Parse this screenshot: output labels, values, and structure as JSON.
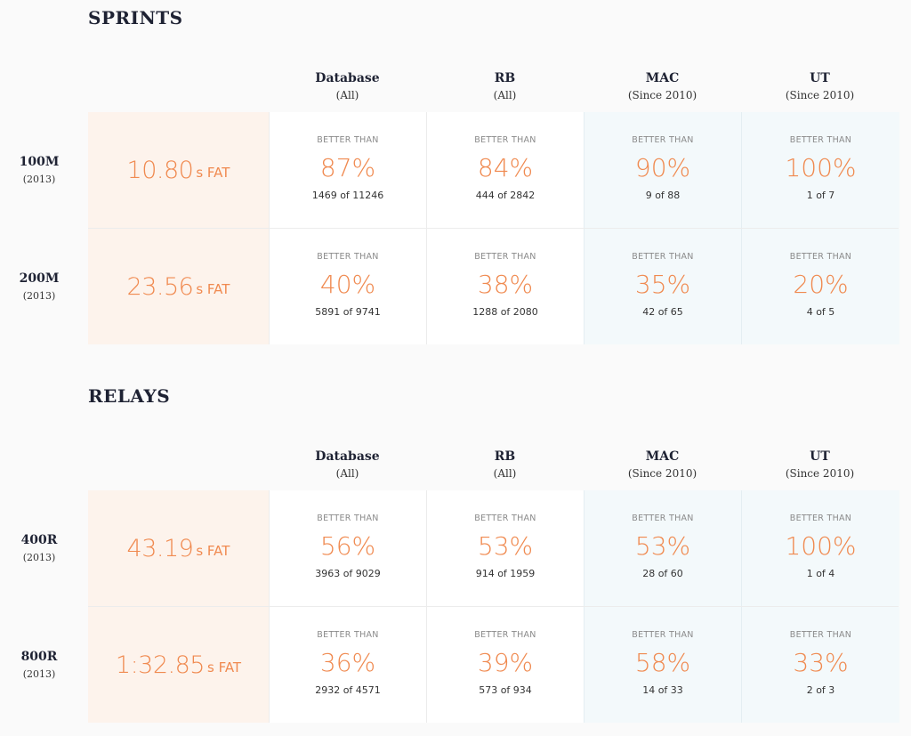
{
  "columns": [
    {
      "name": "Database",
      "sub": "(All)"
    },
    {
      "name": "RB",
      "sub": "(All)"
    },
    {
      "name": "MAC",
      "sub": "(Since 2010)"
    },
    {
      "name": "UT",
      "sub": "(Since 2010)"
    }
  ],
  "cell_label": "BETTER THAN",
  "sections": [
    {
      "title": "SPRINTS",
      "rows": [
        {
          "event": "100M",
          "year": "(2013)",
          "time": "10.80",
          "unit": "s FAT",
          "cells": [
            {
              "pct": "87%",
              "count": "1469 of 11246"
            },
            {
              "pct": "84%",
              "count": "444 of 2842"
            },
            {
              "pct": "90%",
              "count": "9 of 88"
            },
            {
              "pct": "100%",
              "count": "1 of 7"
            }
          ]
        },
        {
          "event": "200M",
          "year": "(2013)",
          "time": "23.56",
          "unit": "s FAT",
          "cells": [
            {
              "pct": "40%",
              "count": "5891 of 9741"
            },
            {
              "pct": "38%",
              "count": "1288 of 2080"
            },
            {
              "pct": "35%",
              "count": "42 of 65"
            },
            {
              "pct": "20%",
              "count": "4 of 5"
            }
          ]
        }
      ]
    },
    {
      "title": "RELAYS",
      "rows": [
        {
          "event": "400R",
          "year": "(2013)",
          "time": "43.19",
          "unit": "s FAT",
          "cells": [
            {
              "pct": "56%",
              "count": "3963 of 9029"
            },
            {
              "pct": "53%",
              "count": "914 of 1959"
            },
            {
              "pct": "53%",
              "count": "28 of 60"
            },
            {
              "pct": "100%",
              "count": "1 of 4"
            }
          ]
        },
        {
          "event": "800R",
          "year": "(2013)",
          "time": "1:32.85",
          "unit": "s FAT",
          "cells": [
            {
              "pct": "36%",
              "count": "2932 of 4571"
            },
            {
              "pct": "39%",
              "count": "573 of 934"
            },
            {
              "pct": "58%",
              "count": "14 of 33"
            },
            {
              "pct": "33%",
              "count": "2 of 3"
            }
          ]
        }
      ]
    }
  ]
}
